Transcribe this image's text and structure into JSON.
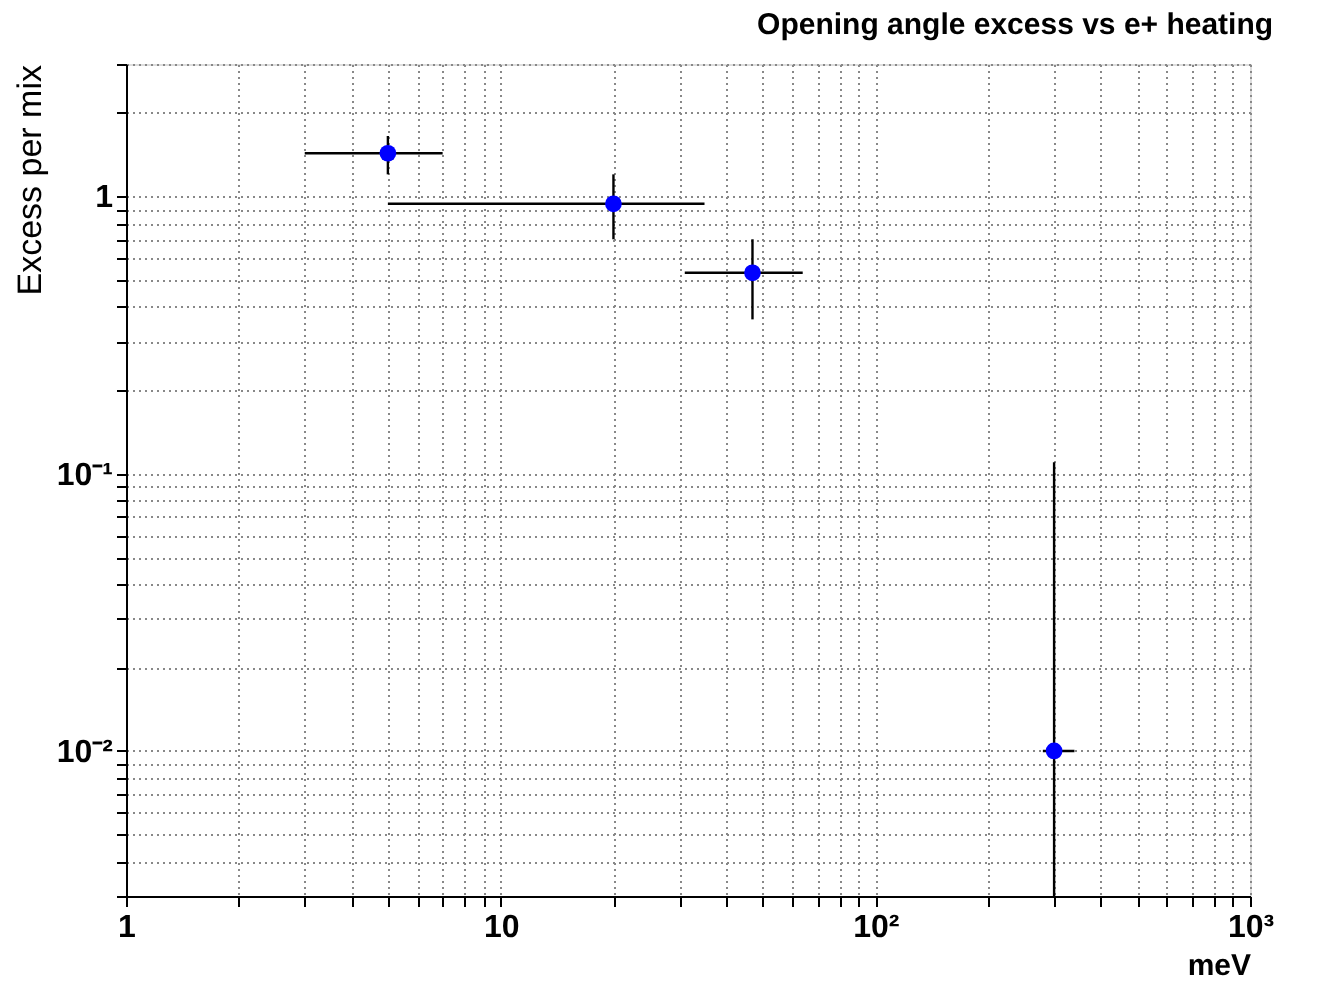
{
  "chart_data": {
    "type": "scatter",
    "title": "Opening angle excess vs e+ heating",
    "xlabel": "meV",
    "ylabel": "Excess per mix",
    "x": [
      5,
      20,
      47,
      300
    ],
    "series": [
      {
        "color": "#0000ff",
        "values": [
          1.43,
          0.94,
          0.53,
          0.01
        ],
        "errors": [
          [
            1.2,
            1.65
          ],
          [
            0.7,
            1.2
          ],
          [
            0.36,
            0.7
          ],
          [
            0.003,
            0.11
          ]
        ],
        "xerrors": [
          [
            3,
            7
          ],
          [
            5,
            35
          ],
          [
            31,
            64
          ],
          [
            280,
            340
          ]
        ]
      }
    ],
    "log": "xy",
    "grid": true,
    "marker": "circle",
    "xlim": [
      1,
      1000
    ],
    "ylim": [
      0.003,
      3
    ],
    "xticks": [
      1,
      {
        "value": 2,
        "label": null
      },
      {
        "value": 3,
        "label": null
      },
      {
        "value": 4,
        "label": null
      },
      {
        "value": 5,
        "label": null
      },
      {
        "value": 6,
        "label": null
      },
      {
        "value": 7,
        "label": null
      },
      {
        "value": 8,
        "label": null
      },
      {
        "value": 9,
        "label": null
      },
      10,
      {
        "value": 20,
        "label": null
      },
      {
        "value": 30,
        "label": null
      },
      {
        "value": 40,
        "label": null
      },
      {
        "value": 50,
        "label": null
      },
      {
        "value": 60,
        "label": null
      },
      {
        "value": 70,
        "label": null
      },
      {
        "value": 80,
        "label": null
      },
      {
        "value": 90,
        "label": null
      },
      {
        "value": 100,
        "label": "10²"
      },
      {
        "value": 200,
        "label": null
      },
      {
        "value": 300,
        "label": null
      },
      {
        "value": 400,
        "label": null
      },
      {
        "value": 500,
        "label": null
      },
      {
        "value": 600,
        "label": null
      },
      {
        "value": 700,
        "label": null
      },
      {
        "value": 800,
        "label": null
      },
      {
        "value": 900,
        "label": null
      },
      {
        "value": 1000,
        "label": "10³"
      }
    ],
    "yticks": [
      {
        "value": 0.003,
        "label": null
      },
      {
        "value": 0.004,
        "label": null
      },
      {
        "value": 0.005,
        "label": null
      },
      {
        "value": 0.006,
        "label": null
      },
      {
        "value": 0.007,
        "label": null
      },
      {
        "value": 0.008,
        "label": null
      },
      {
        "value": 0.009,
        "label": null
      },
      {
        "value": 0.01,
        "label": "10⁻²"
      },
      {
        "value": 0.02,
        "label": null
      },
      {
        "value": 0.03,
        "label": null
      },
      {
        "value": 0.04,
        "label": null
      },
      {
        "value": 0.05,
        "label": null
      },
      {
        "value": 0.06,
        "label": null
      },
      {
        "value": 0.07,
        "label": null
      },
      {
        "value": 0.08,
        "label": null
      },
      {
        "value": 0.09,
        "label": null
      },
      {
        "value": 0.1,
        "label": "10⁻¹"
      },
      {
        "value": 0.2,
        "label": null
      },
      {
        "value": 0.3,
        "label": null
      },
      {
        "value": 0.4,
        "label": null
      },
      {
        "value": 0.5,
        "label": null
      },
      {
        "value": 0.6,
        "label": null
      },
      {
        "value": 0.7,
        "label": null
      },
      {
        "value": 0.8,
        "label": null
      },
      {
        "value": 0.9,
        "label": null
      },
      1,
      {
        "value": 2,
        "label": null
      },
      {
        "value": 3,
        "label": null
      }
    ]
  }
}
